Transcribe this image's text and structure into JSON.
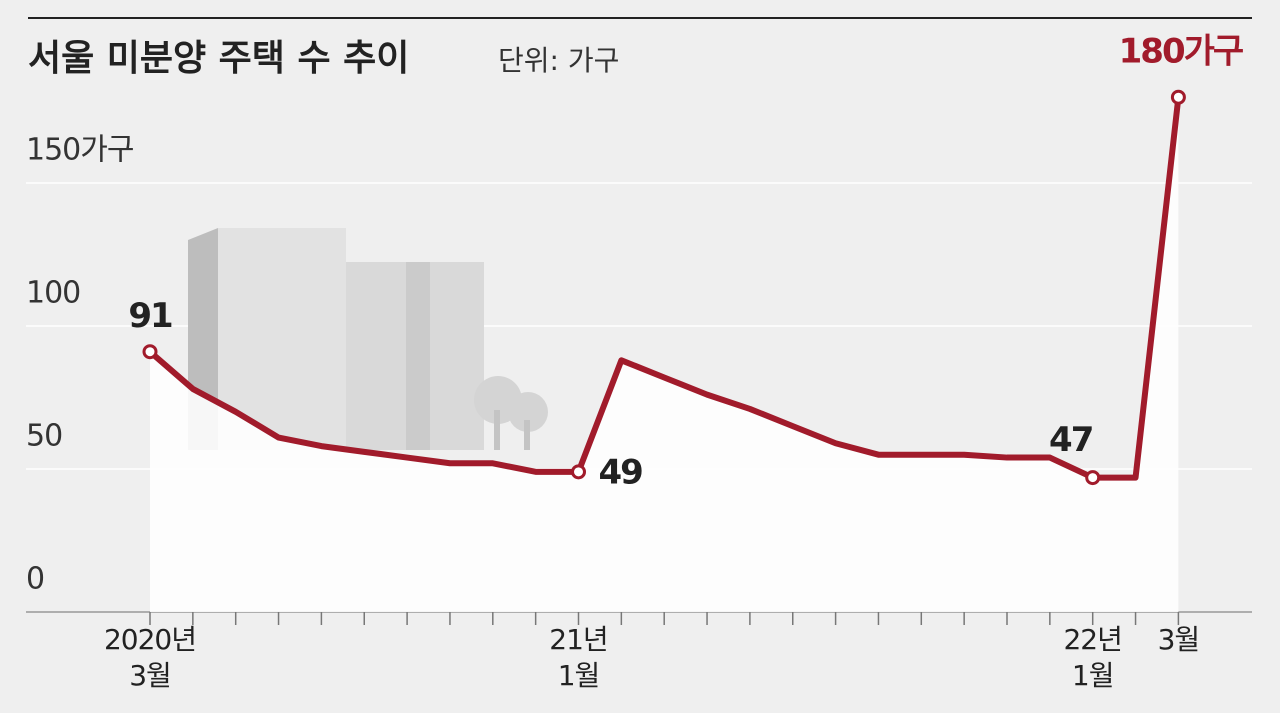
{
  "chart_data": {
    "type": "line",
    "title": "서울 미분양 주택 수 추이",
    "subtitle": "단위: 가구",
    "categories": [
      "2020년\n3월",
      null,
      null,
      null,
      null,
      null,
      null,
      null,
      null,
      null,
      "21년\n1월",
      null,
      null,
      null,
      null,
      null,
      null,
      null,
      null,
      null,
      null,
      null,
      "22년\n1월",
      null,
      "3월"
    ],
    "values": [
      91,
      78,
      70,
      61,
      58,
      56,
      54,
      52,
      52,
      49,
      49,
      88,
      82,
      76,
      71,
      65,
      59,
      55,
      55,
      55,
      54,
      54,
      47,
      47,
      180
    ],
    "value_labels": [
      "91",
      null,
      null,
      null,
      null,
      null,
      null,
      null,
      null,
      null,
      "49",
      null,
      null,
      null,
      null,
      null,
      null,
      null,
      null,
      null,
      null,
      null,
      "47",
      null,
      "180가구"
    ],
    "color": "#a11b2b",
    "ylim": [
      0,
      200
    ],
    "yticks": [
      0,
      50,
      100,
      {
        "value": 150,
        "label": "150가구"
      }
    ],
    "grid": true
  }
}
